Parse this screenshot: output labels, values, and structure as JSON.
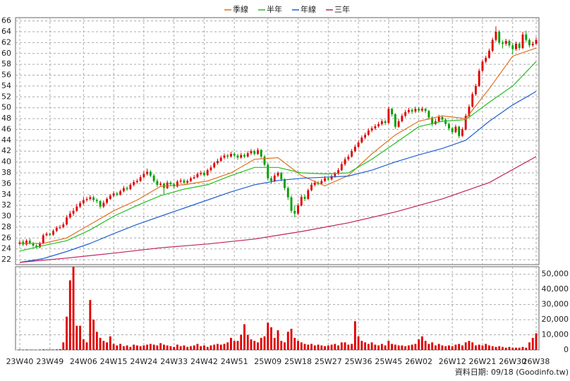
{
  "chart_data": {
    "type": "candlestick",
    "up_color": "#e00000",
    "down_color": "#00a000",
    "ylim": [
      21.1,
      66.6
    ],
    "yticks": [
      22,
      24,
      26,
      28,
      30,
      32,
      34,
      36,
      38,
      40,
      42,
      44,
      46,
      48,
      50,
      52,
      54,
      56,
      58,
      60,
      62,
      64,
      66
    ],
    "grid": true,
    "categories": [
      "23W40",
      null,
      null,
      null,
      null,
      null,
      null,
      null,
      null,
      "23W49",
      null,
      null,
      null,
      null,
      null,
      null,
      null,
      null,
      null,
      "24W06",
      null,
      null,
      null,
      null,
      null,
      null,
      null,
      null,
      "24W15",
      null,
      null,
      null,
      null,
      null,
      null,
      null,
      null,
      "24W24",
      null,
      null,
      null,
      null,
      null,
      null,
      null,
      null,
      "24W33",
      null,
      null,
      null,
      null,
      null,
      null,
      null,
      null,
      "24W42",
      null,
      null,
      null,
      null,
      null,
      null,
      null,
      null,
      "24W51",
      null,
      null,
      null,
      null,
      null,
      null,
      null,
      null,
      null,
      "25W09",
      null,
      null,
      null,
      null,
      null,
      null,
      null,
      null,
      "25W18",
      null,
      null,
      null,
      null,
      null,
      null,
      null,
      null,
      "25W27",
      null,
      null,
      null,
      null,
      null,
      null,
      null,
      null,
      "25W36",
      null,
      null,
      null,
      null,
      null,
      null,
      null,
      null,
      "25W45",
      null,
      null,
      null,
      null,
      null,
      null,
      null,
      null,
      "26W02",
      null,
      null,
      null,
      null,
      null,
      null,
      null,
      null,
      null,
      "26W12",
      null,
      null,
      null,
      null,
      null,
      null,
      null,
      null,
      "26W21",
      null,
      null,
      null,
      null,
      null,
      null,
      null,
      null,
      "26W30",
      null,
      null,
      null,
      null,
      null,
      null,
      "26W38"
    ],
    "ohlc": [
      [
        24.9,
        25.6,
        24.6,
        25.2
      ],
      [
        25.3,
        25.7,
        24.5,
        24.8
      ],
      [
        24.8,
        25.8,
        24.6,
        25.5
      ],
      [
        25.5,
        25.9,
        24.8,
        25.0
      ],
      [
        25.0,
        25.3,
        24.3,
        24.6
      ],
      [
        24.6,
        24.9,
        24.0,
        24.3
      ],
      [
        24.3,
        25.3,
        24.1,
        25.0
      ],
      [
        25.0,
        26.8,
        24.9,
        26.5
      ],
      [
        26.5,
        27.1,
        26.3,
        26.8
      ],
      [
        26.8,
        27.0,
        26.3,
        26.6
      ],
      [
        26.6,
        27.6,
        26.4,
        27.3
      ],
      [
        27.3,
        28.2,
        27.1,
        27.9
      ],
      [
        27.9,
        28.4,
        27.6,
        28.0
      ],
      [
        28.0,
        28.9,
        27.8,
        28.5
      ],
      [
        28.5,
        30.2,
        28.3,
        29.8
      ],
      [
        29.8,
        31.0,
        29.5,
        30.5
      ],
      [
        30.5,
        31.5,
        30.1,
        31.0
      ],
      [
        31.0,
        32.3,
        30.8,
        31.8
      ],
      [
        31.8,
        32.8,
        31.5,
        32.4
      ],
      [
        32.4,
        33.5,
        32.1,
        33.0
      ],
      [
        33.0,
        33.6,
        32.7,
        33.2
      ],
      [
        33.2,
        33.9,
        32.9,
        33.5
      ],
      [
        33.5,
        33.8,
        32.6,
        33.0
      ],
      [
        33.0,
        33.3,
        32.4,
        32.8
      ],
      [
        32.8,
        33.0,
        31.4,
        31.8
      ],
      [
        31.8,
        32.9,
        31.5,
        32.5
      ],
      [
        32.5,
        33.5,
        32.2,
        33.2
      ],
      [
        33.2,
        34.1,
        33.0,
        33.8
      ],
      [
        33.8,
        34.6,
        33.5,
        34.2
      ],
      [
        34.2,
        34.5,
        33.7,
        34.0
      ],
      [
        34.0,
        34.9,
        33.8,
        34.6
      ],
      [
        34.6,
        35.6,
        34.4,
        35.2
      ],
      [
        35.2,
        35.5,
        34.7,
        35.0
      ],
      [
        35.0,
        36.1,
        34.8,
        35.8
      ],
      [
        35.8,
        36.7,
        35.5,
        36.3
      ],
      [
        36.3,
        36.9,
        36.0,
        36.5
      ],
      [
        36.5,
        37.6,
        36.3,
        37.2
      ],
      [
        37.2,
        38.3,
        37.0,
        37.8
      ],
      [
        37.8,
        38.8,
        37.5,
        38.2
      ],
      [
        38.2,
        38.5,
        37.2,
        37.5
      ],
      [
        37.5,
        37.8,
        36.2,
        36.5
      ],
      [
        36.5,
        36.9,
        35.4,
        35.8
      ],
      [
        35.8,
        36.4,
        35.5,
        36.0
      ],
      [
        36.0,
        36.2,
        34.0,
        35.2
      ],
      [
        35.2,
        36.6,
        35.0,
        36.2
      ],
      [
        36.2,
        36.5,
        35.6,
        35.9
      ],
      [
        35.9,
        36.2,
        35.1,
        35.5
      ],
      [
        35.5,
        36.7,
        35.3,
        36.4
      ],
      [
        36.4,
        37.0,
        36.1,
        36.6
      ],
      [
        36.6,
        36.9,
        35.9,
        36.2
      ],
      [
        36.2,
        36.8,
        35.9,
        36.5
      ],
      [
        36.5,
        37.3,
        36.3,
        37.0
      ],
      [
        37.0,
        37.6,
        36.8,
        37.2
      ],
      [
        37.2,
        38.1,
        37.0,
        37.8
      ],
      [
        37.8,
        38.4,
        37.5,
        38.0
      ],
      [
        38.0,
        38.3,
        37.3,
        37.6
      ],
      [
        37.6,
        38.8,
        37.4,
        38.5
      ],
      [
        38.5,
        39.4,
        38.2,
        39.0
      ],
      [
        39.0,
        40.1,
        38.8,
        39.8
      ],
      [
        39.8,
        40.6,
        39.5,
        40.2
      ],
      [
        40.2,
        41.2,
        40.0,
        40.8
      ],
      [
        40.8,
        41.6,
        40.5,
        41.2
      ],
      [
        41.2,
        41.5,
        40.6,
        41.0
      ],
      [
        41.0,
        41.9,
        40.8,
        41.5
      ],
      [
        41.5,
        41.8,
        40.9,
        41.2
      ],
      [
        41.2,
        41.5,
        40.4,
        40.8
      ],
      [
        40.8,
        41.7,
        40.6,
        41.3
      ],
      [
        41.3,
        41.6,
        40.7,
        41.0
      ],
      [
        41.0,
        42.0,
        40.8,
        41.6
      ],
      [
        41.6,
        42.4,
        41.3,
        42.0
      ],
      [
        42.0,
        42.3,
        41.2,
        41.5
      ],
      [
        41.5,
        42.6,
        41.3,
        42.2
      ],
      [
        42.2,
        42.4,
        40.7,
        41.0
      ],
      [
        41.0,
        41.3,
        39.2,
        39.5
      ],
      [
        39.5,
        39.8,
        36.6,
        37.0
      ],
      [
        37.0,
        37.4,
        36.0,
        36.5
      ],
      [
        36.5,
        37.9,
        36.3,
        37.5
      ],
      [
        37.5,
        38.3,
        37.2,
        38.0
      ],
      [
        38.0,
        38.2,
        36.5,
        36.8
      ],
      [
        36.8,
        37.0,
        34.8,
        35.2
      ],
      [
        35.2,
        35.5,
        33.0,
        33.5
      ],
      [
        33.5,
        33.8,
        30.6,
        31.0
      ],
      [
        31.0,
        32.0,
        29.8,
        30.5
      ],
      [
        30.5,
        32.4,
        30.2,
        32.0
      ],
      [
        32.0,
        34.0,
        31.8,
        33.6
      ],
      [
        33.6,
        34.0,
        32.8,
        33.2
      ],
      [
        33.2,
        35.1,
        33.0,
        34.8
      ],
      [
        34.8,
        36.2,
        34.6,
        35.8
      ],
      [
        35.8,
        36.6,
        35.5,
        36.2
      ],
      [
        36.2,
        36.5,
        35.7,
        36.0
      ],
      [
        36.0,
        36.9,
        35.8,
        36.5
      ],
      [
        36.5,
        37.4,
        36.3,
        37.0
      ],
      [
        37.0,
        37.3,
        36.5,
        36.8
      ],
      [
        36.8,
        37.7,
        36.6,
        37.4
      ],
      [
        37.4,
        38.2,
        37.1,
        37.9
      ],
      [
        37.9,
        38.9,
        37.6,
        38.5
      ],
      [
        38.5,
        40.0,
        38.3,
        39.6
      ],
      [
        39.6,
        40.9,
        39.3,
        40.5
      ],
      [
        40.5,
        41.4,
        40.2,
        41.0
      ],
      [
        41.0,
        42.4,
        40.8,
        42.0
      ],
      [
        42.0,
        43.2,
        41.8,
        42.8
      ],
      [
        42.8,
        44.0,
        42.5,
        43.6
      ],
      [
        43.6,
        44.9,
        43.4,
        44.5
      ],
      [
        44.5,
        45.4,
        44.2,
        45.0
      ],
      [
        45.0,
        46.2,
        44.8,
        45.8
      ],
      [
        45.8,
        46.6,
        45.5,
        46.2
      ],
      [
        46.2,
        47.0,
        45.9,
        46.6
      ],
      [
        46.6,
        47.4,
        46.3,
        47.0
      ],
      [
        47.0,
        47.9,
        46.7,
        47.5
      ],
      [
        47.5,
        47.8,
        46.8,
        47.2
      ],
      [
        47.2,
        50.2,
        47.0,
        49.8
      ],
      [
        49.8,
        50.0,
        48.4,
        48.8
      ],
      [
        48.8,
        49.0,
        46.1,
        46.5
      ],
      [
        46.5,
        47.9,
        46.3,
        47.5
      ],
      [
        47.5,
        48.9,
        47.3,
        48.5
      ],
      [
        48.5,
        49.6,
        48.2,
        49.2
      ],
      [
        49.2,
        50.0,
        48.9,
        49.6
      ],
      [
        49.6,
        49.9,
        48.9,
        49.3
      ],
      [
        49.3,
        50.2,
        49.0,
        49.8
      ],
      [
        49.8,
        50.1,
        49.1,
        49.5
      ],
      [
        49.5,
        50.2,
        49.2,
        49.8
      ],
      [
        49.8,
        50.0,
        49.0,
        49.4
      ],
      [
        49.4,
        49.6,
        47.8,
        48.2
      ],
      [
        48.2,
        48.4,
        46.6,
        47.0
      ],
      [
        47.0,
        47.9,
        46.8,
        47.5
      ],
      [
        47.5,
        48.7,
        47.3,
        48.3
      ],
      [
        48.3,
        48.6,
        47.4,
        47.8
      ],
      [
        47.8,
        48.1,
        46.6,
        47.0
      ],
      [
        47.0,
        47.3,
        45.8,
        46.2
      ],
      [
        46.2,
        46.5,
        45.1,
        45.5
      ],
      [
        45.5,
        46.9,
        45.3,
        46.5
      ],
      [
        46.5,
        46.7,
        44.4,
        44.8
      ],
      [
        44.8,
        46.4,
        44.6,
        46.0
      ],
      [
        46.0,
        48.9,
        45.8,
        48.5
      ],
      [
        48.5,
        50.6,
        48.3,
        50.2
      ],
      [
        50.2,
        52.9,
        50.0,
        52.5
      ],
      [
        52.5,
        54.4,
        52.2,
        54.0
      ],
      [
        54.0,
        57.2,
        53.8,
        56.8
      ],
      [
        56.8,
        58.9,
        56.5,
        58.5
      ],
      [
        58.5,
        59.6,
        58.2,
        59.2
      ],
      [
        59.2,
        60.9,
        59.0,
        60.5
      ],
      [
        60.5,
        62.9,
        60.2,
        62.5
      ],
      [
        62.5,
        65.0,
        62.2,
        64.0
      ],
      [
        64.0,
        64.3,
        61.6,
        62.0
      ],
      [
        62.0,
        62.4,
        60.9,
        61.8
      ],
      [
        61.8,
        62.7,
        61.4,
        62.3
      ],
      [
        62.3,
        62.6,
        61.1,
        61.5
      ],
      [
        61.5,
        61.9,
        59.8,
        60.8
      ],
      [
        60.8,
        62.2,
        60.5,
        61.8
      ],
      [
        61.8,
        62.1,
        60.6,
        61.0
      ],
      [
        61.0,
        64.0,
        60.8,
        63.5
      ],
      [
        63.5,
        64.2,
        62.1,
        62.5
      ],
      [
        62.5,
        62.8,
        61.1,
        61.5
      ],
      [
        61.5,
        62.2,
        61.2,
        61.8
      ],
      [
        61.8,
        63.0,
        61.5,
        62.5
      ]
    ],
    "series": [
      {
        "name": "季線",
        "color": "#e07020",
        "x": [
          0,
          7,
          14,
          21,
          28,
          35,
          42,
          49,
          56,
          63,
          70,
          77,
          84,
          91,
          98,
          105,
          112,
          119,
          126,
          133,
          140,
          147,
          154
        ],
        "values": [
          25.0,
          25.0,
          26.0,
          28.5,
          31.0,
          33.0,
          35.5,
          35.8,
          36.5,
          38.0,
          40.5,
          40.8,
          37.5,
          35.6,
          37.5,
          41.5,
          45.0,
          47.5,
          48.5,
          48.0,
          53.5,
          59.5,
          61.0
        ]
      },
      {
        "name": "半年",
        "color": "#20c020",
        "x": [
          0,
          7,
          14,
          21,
          28,
          35,
          42,
          49,
          56,
          63,
          70,
          77,
          84,
          91,
          98,
          105,
          112,
          119,
          126,
          133,
          140,
          147,
          154
        ],
        "values": [
          23.6,
          24.6,
          25.5,
          27.5,
          30.0,
          32.0,
          33.8,
          35.0,
          35.8,
          37.5,
          39.0,
          39.0,
          38.0,
          37.8,
          38.0,
          40.5,
          43.5,
          46.5,
          47.5,
          47.8,
          51.0,
          54.0,
          58.5
        ]
      },
      {
        "name": "年線",
        "color": "#2060d0",
        "x": [
          0,
          7,
          14,
          21,
          28,
          35,
          42,
          49,
          56,
          63,
          70,
          77,
          84,
          91,
          98,
          105,
          112,
          119,
          126,
          133,
          140,
          147,
          154
        ],
        "values": [
          21.5,
          22.2,
          23.5,
          25.0,
          26.8,
          28.5,
          30.0,
          31.5,
          33.0,
          34.5,
          35.8,
          36.6,
          37.0,
          37.2,
          37.4,
          38.5,
          40.0,
          41.3,
          42.5,
          44.0,
          47.5,
          50.5,
          53.0
        ]
      },
      {
        "name": "三年",
        "color": "#c02060",
        "x": [
          0,
          14,
          28,
          42,
          56,
          70,
          84,
          98,
          112,
          126,
          140,
          154
        ],
        "values": [
          21.5,
          22.3,
          23.2,
          24.2,
          24.9,
          25.8,
          27.2,
          28.8,
          30.8,
          33.2,
          36.2,
          41.0
        ]
      }
    ],
    "volume": {
      "color": "#e00000",
      "ylim": [
        0,
        55000
      ],
      "yticks": [
        0,
        {
          "value": 10000,
          "label": "10,000"
        },
        {
          "value": 20000,
          "label": "20,000"
        },
        {
          "value": 30000,
          "label": "30,000"
        },
        {
          "value": 40000,
          "label": "40,000"
        },
        {
          "value": 50000,
          "label": "50,000"
        }
      ],
      "values": [
        300,
        200,
        300,
        200,
        200,
        100,
        300,
        400,
        300,
        300,
        300,
        400,
        600,
        5000,
        22000,
        46000,
        55000,
        16000,
        16000,
        7000,
        5000,
        33000,
        20000,
        12000,
        8000,
        6000,
        5000,
        9000,
        4000,
        3000,
        4000,
        2500,
        3000,
        2000,
        3500,
        3000,
        2500,
        3000,
        3500,
        4000,
        3500,
        3000,
        4500,
        3500,
        3000,
        2500,
        2000,
        3500,
        2500,
        3000,
        2000,
        2500,
        3000,
        4000,
        2500,
        3000,
        2000,
        3000,
        3500,
        4000,
        3500,
        4000,
        5000,
        8000,
        6000,
        6000,
        10000,
        17000,
        10000,
        7000,
        6000,
        5000,
        8000,
        9000,
        18000,
        15000,
        8000,
        13000,
        6000,
        5000,
        12000,
        14000,
        8000,
        6000,
        5000,
        4000,
        3500,
        4000,
        3000,
        3500,
        3000,
        2500,
        3000,
        3500,
        4000,
        3000,
        5000,
        5000,
        3500,
        4000,
        19000,
        9000,
        6000,
        5000,
        4000,
        5000,
        3500,
        3000,
        4000,
        3000,
        6000,
        4000,
        3500,
        3000,
        3000,
        2500,
        3000,
        3500,
        4000,
        7000,
        9000,
        6000,
        4000,
        5000,
        3000,
        4000,
        3000,
        2500,
        3000,
        2500,
        3500,
        4000,
        3000,
        5000,
        6000,
        5000,
        3000,
        3500,
        3000,
        4000,
        3000,
        2500,
        2000,
        2500,
        2000,
        1500,
        2000,
        1500,
        1500,
        1500,
        2000,
        1500,
        5000,
        8000,
        11000
      ]
    },
    "source": "資料日期: 09/18 (Goodinfo.tw)"
  }
}
